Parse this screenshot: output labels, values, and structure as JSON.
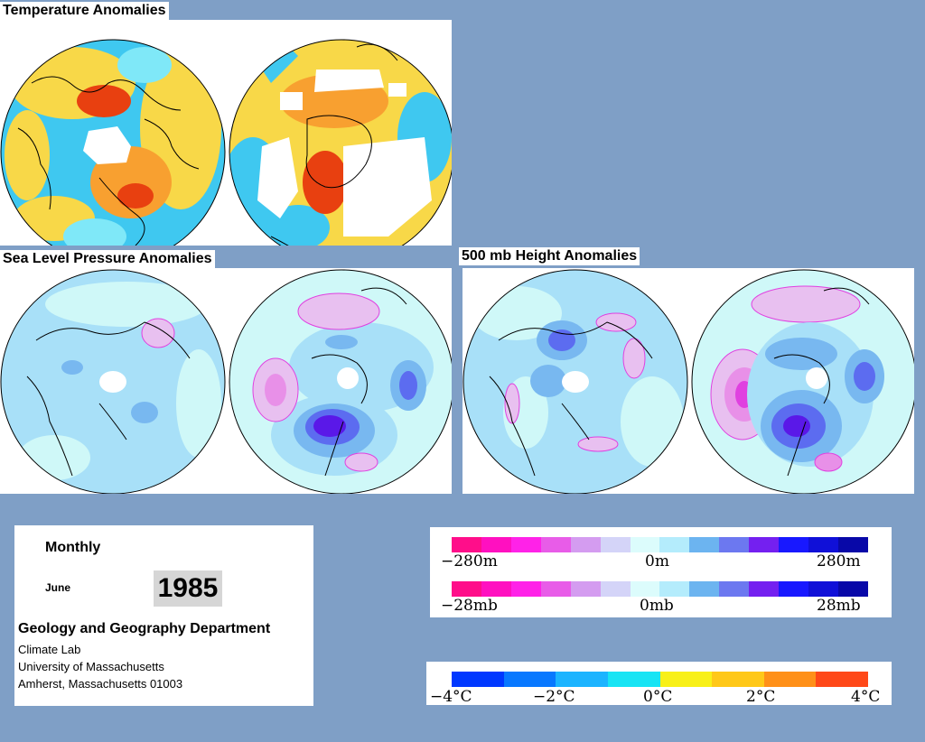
{
  "titles": {
    "temperature": "Temperature Anomalies",
    "slp": "Sea Level Pressure Anomalies",
    "height": "500 mb Height Anomalies"
  },
  "info": {
    "period": "Monthly",
    "month": "June",
    "year": "1985",
    "department": "Geology and Geography Department",
    "lab": "Climate Lab",
    "university": "University of Massachusetts",
    "address": "Amherst, Massachusetts 01003"
  },
  "legend_pressure": {
    "height_ticks": [
      "−280m",
      "0m",
      "280m"
    ],
    "pressure_ticks": [
      "−28mb",
      "0mb",
      "28mb"
    ],
    "colors": [
      "#ff0e8a",
      "#ff10c0",
      "#ff22e8",
      "#e85ce8",
      "#d49cf0",
      "#d4d4f8",
      "#dcfcfc",
      "#b4ecfc",
      "#6cb4f0",
      "#6c78f0",
      "#7420f0",
      "#1818ff",
      "#1010d8",
      "#0808a8"
    ]
  },
  "legend_temperature": {
    "ticks": [
      "−4°C",
      "−2°C",
      "0°C",
      "2°C",
      "4°C"
    ],
    "colors": [
      "#0038ff",
      "#0878ff",
      "#1cb4ff",
      "#18e4f4",
      "#f8f018",
      "#ffc818",
      "#ff9018",
      "#ff4818"
    ]
  },
  "map_palette": {
    "temp_cold": "#3fc8f0",
    "temp_cool": "#7fe8f8",
    "temp_warm": "#f8d848",
    "temp_orange": "#f8a030",
    "temp_red": "#e84010",
    "ocean_zero": "#cff8f8",
    "neg_light": "#a8e0f8",
    "neg_mid": "#78b8f0",
    "neg_strong": "#5c6cf0",
    "neg_deep": "#5a18e8",
    "pos_light": "#e8c0f0",
    "pos_mid": "#e890e8"
  }
}
